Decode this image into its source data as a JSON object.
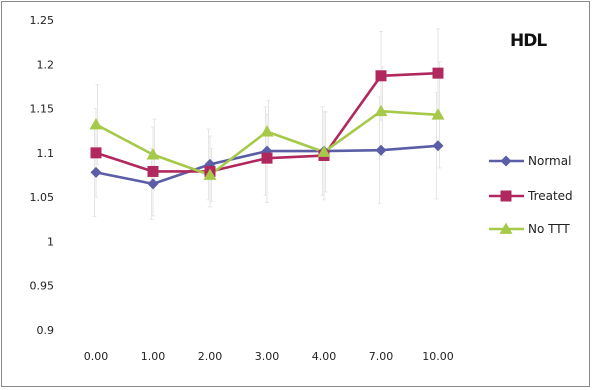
{
  "chart_data": {
    "type": "line",
    "title": "HDL",
    "xlabel": "",
    "ylabel": "",
    "categories": [
      "0.00",
      "1.00",
      "2.00",
      "3.00",
      "4.00",
      "7.00",
      "10.00"
    ],
    "ylim": [
      0.9,
      1.25
    ],
    "yticks": [
      "0.9",
      "0.95",
      "1",
      "1.05",
      "1.1",
      "1.15",
      "1.2",
      "1.25"
    ],
    "grid": false,
    "legend_position": "right",
    "series": [
      {
        "name": "Normal",
        "marker": "diamond",
        "color": "#5b5ea6",
        "values": [
          1.078,
          1.065,
          1.087,
          1.102,
          1.102,
          1.103,
          1.108
        ],
        "error": [
          0.05,
          0.04,
          0.04,
          0.05,
          0.05,
          0.06,
          0.06
        ]
      },
      {
        "name": "Treated",
        "marker": "square",
        "color": "#b0285e",
        "values": [
          1.1,
          1.079,
          1.079,
          1.094,
          1.097,
          1.187,
          1.19
        ],
        "error": [
          0.05,
          0.05,
          0.04,
          0.05,
          0.05,
          0.05,
          0.05
        ]
      },
      {
        "name": "No TTT",
        "marker": "triangle",
        "color": "#a6c94a",
        "values": [
          1.132,
          1.098,
          1.075,
          1.124,
          1.101,
          1.147,
          1.143
        ],
        "error": [
          0.045,
          0.04,
          0.03,
          0.035,
          0.045,
          0.05,
          0.06
        ]
      }
    ]
  }
}
